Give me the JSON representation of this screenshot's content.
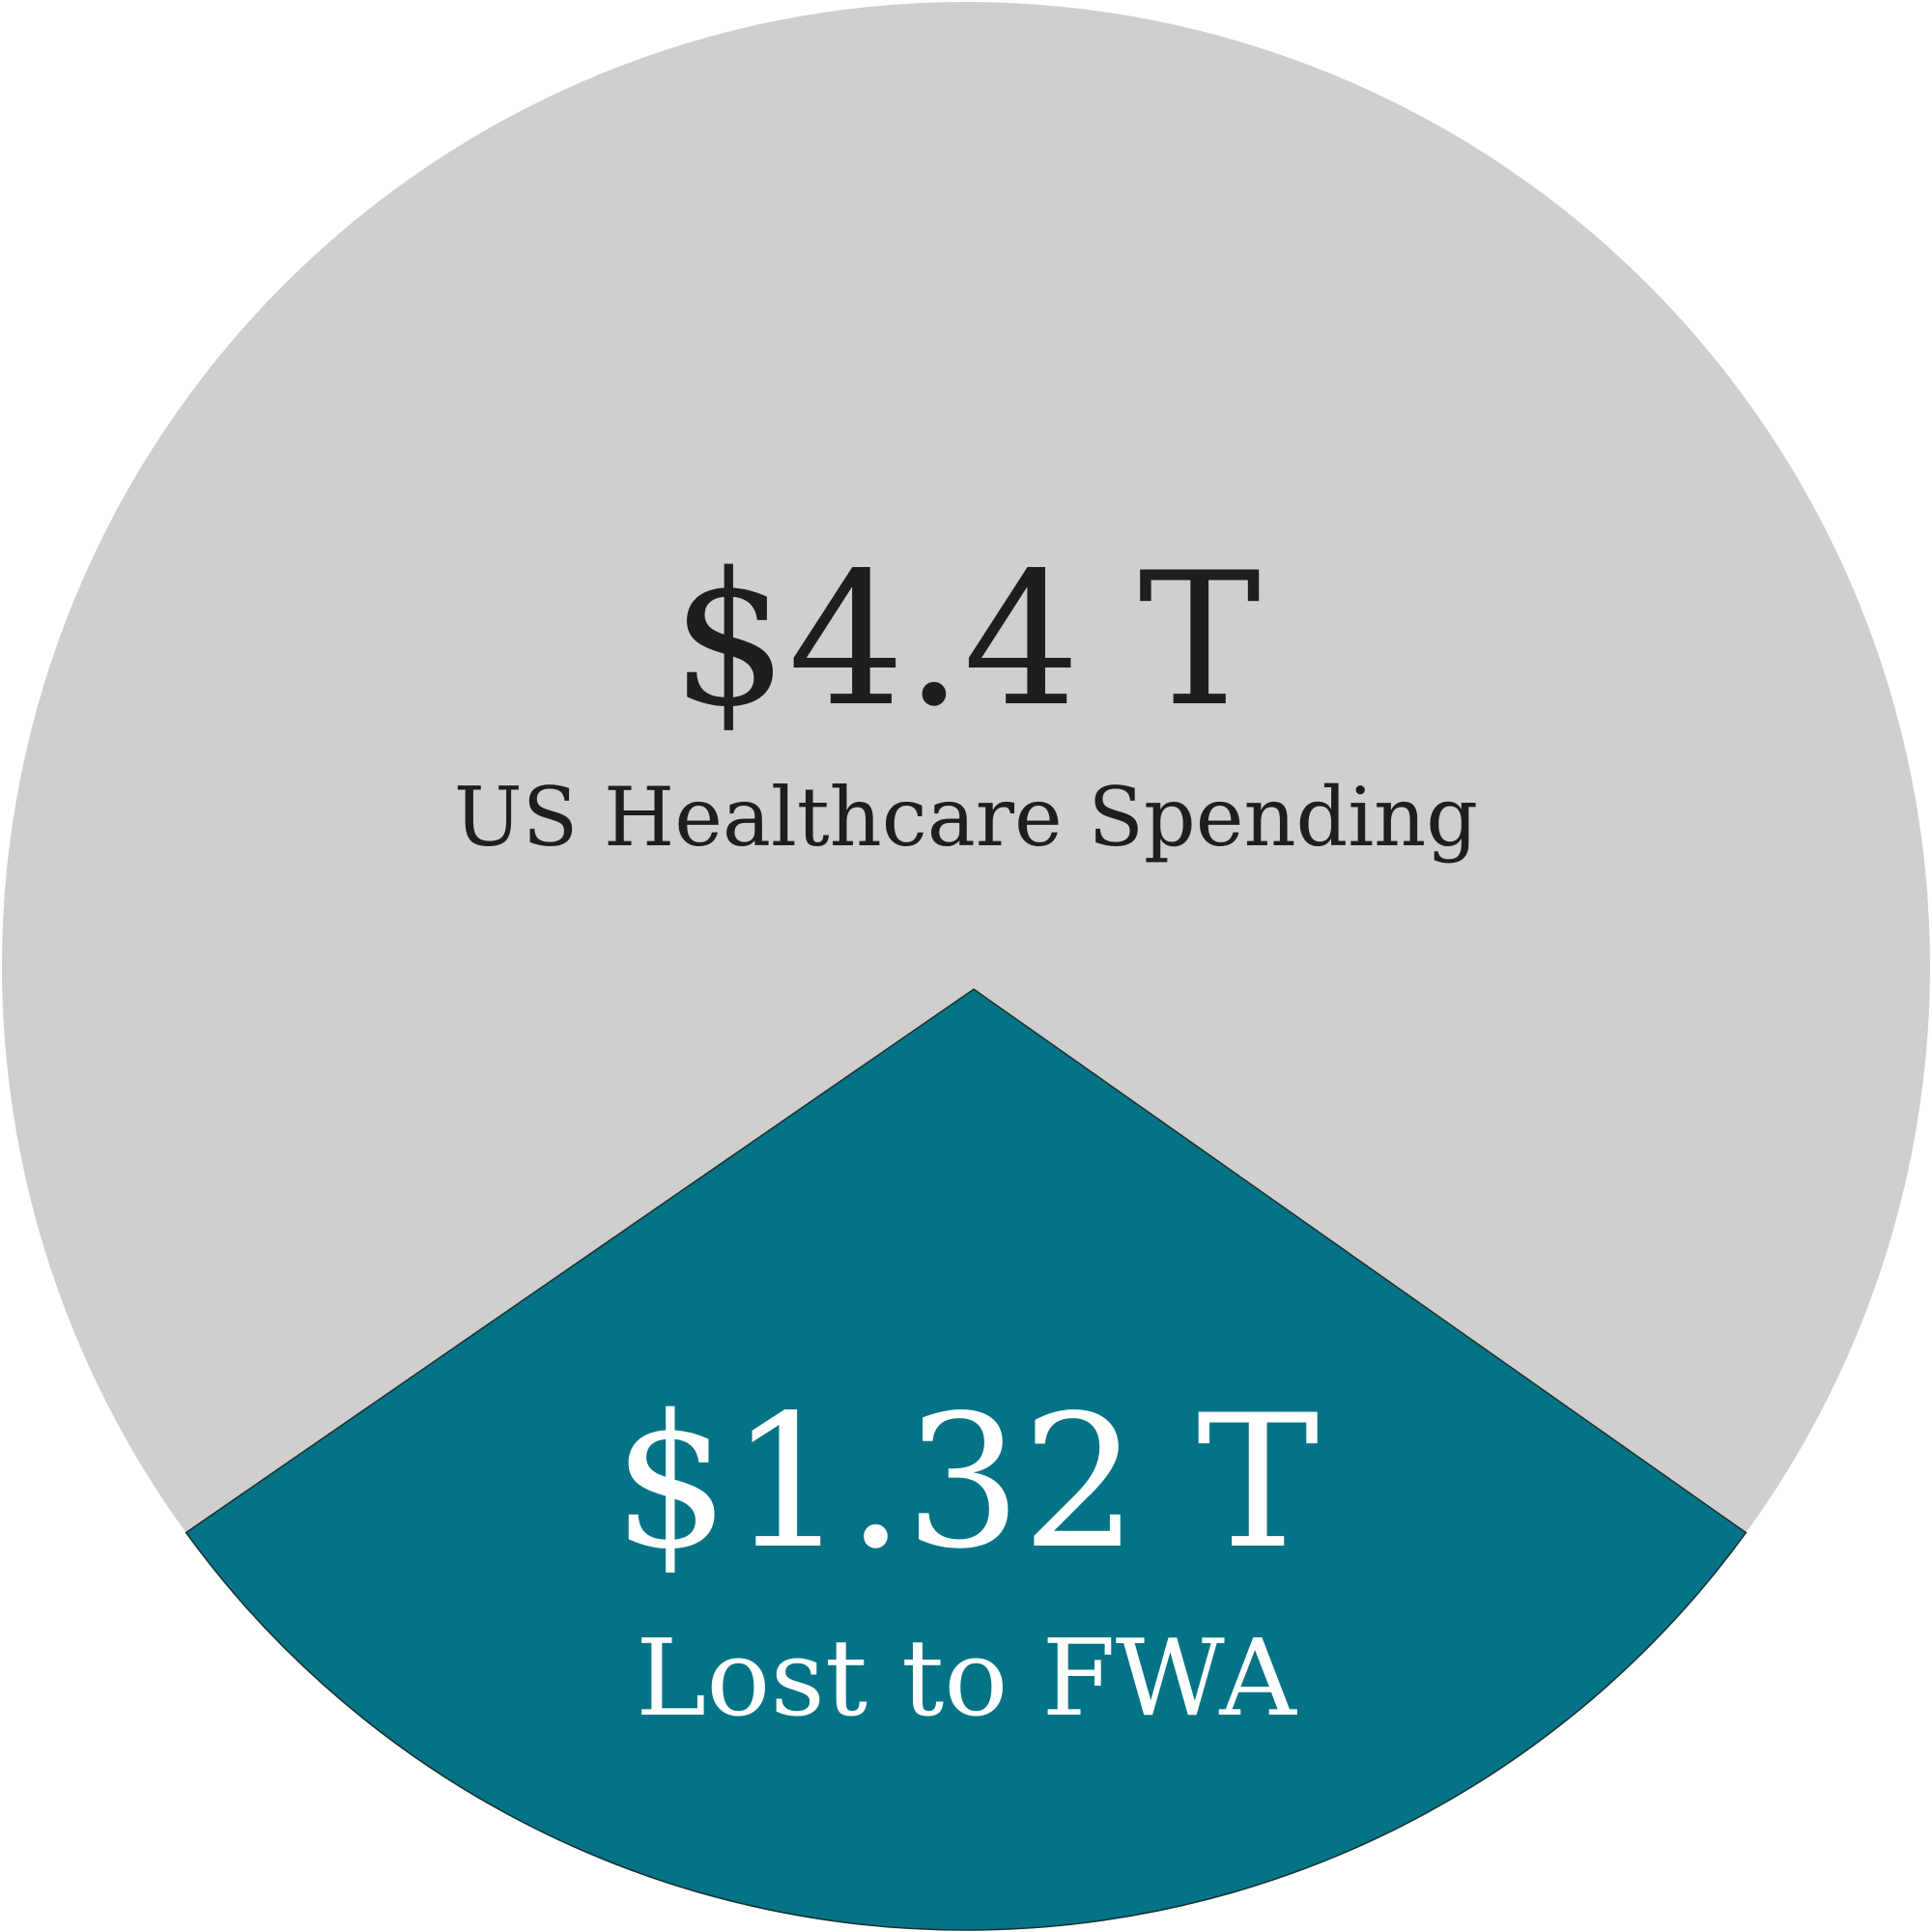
{
  "chart_data": {
    "type": "pie",
    "slices": [
      {
        "value": 4.4,
        "label": "US Healthcare Spending",
        "value_label": "$4.4 T",
        "color": "#d0cfcd",
        "text_color": "#1e1e1c"
      },
      {
        "value": 1.32,
        "label": "Lost to FWA",
        "value_label": "$1.32 T",
        "color": "#047385",
        "text_color": "#ffffff"
      }
    ],
    "outline_color": "#163033"
  }
}
